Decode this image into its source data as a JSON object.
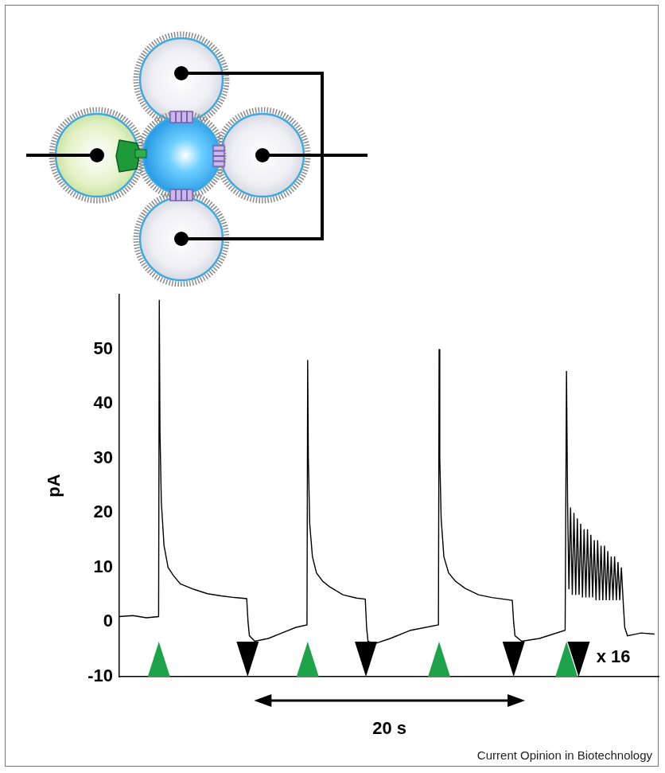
{
  "chart_data": {
    "type": "line",
    "y_label": "pA",
    "x": [
      0,
      1,
      2,
      2.9,
      2.95,
      3.0,
      3.1,
      3.3,
      3.6,
      4.0,
      4.5,
      5.5,
      6.5,
      7.5,
      8.5,
      9.4,
      9.5,
      9.6,
      10.0,
      11,
      12,
      13,
      13.85,
      13.9,
      13.95,
      14.05,
      14.25,
      14.55,
      15,
      15.5,
      16.5,
      17.5,
      18.15,
      18.25,
      18.35,
      18.8,
      20,
      21.5,
      23.55,
      23.6,
      23.65,
      23.75,
      23.95,
      24.3,
      24.8,
      25.5,
      26.5,
      27.5,
      29.0,
      29.1,
      29.2,
      29.7,
      31,
      32.9,
      33.0,
      33.08,
      33.18,
      33.3,
      33.43,
      33.55,
      33.68,
      33.8,
      33.93,
      34.05,
      34.18,
      34.3,
      34.43,
      34.55,
      34.68,
      34.8,
      34.93,
      35.05,
      35.18,
      35.3,
      35.43,
      35.55,
      35.68,
      35.8,
      35.93,
      36.05,
      36.18,
      36.3,
      36.43,
      36.55,
      36.68,
      36.8,
      36.93,
      37.05,
      37.2,
      37.3,
      37.5,
      38.5,
      39.5
    ],
    "values": [
      1,
      1.2,
      0.8,
      1,
      59,
      35,
      22,
      14,
      10,
      8.5,
      7,
      6,
      5.2,
      4.8,
      4.5,
      4.3,
      0,
      -2.5,
      -3.5,
      -3,
      -2,
      -1,
      -0.5,
      48,
      30,
      18,
      12,
      9,
      7.5,
      6.5,
      5,
      4.4,
      4.2,
      -1,
      -3.5,
      -4,
      -3,
      -1.5,
      -0.5,
      50,
      30,
      19,
      12,
      9,
      7.5,
      6.2,
      5,
      4.5,
      4,
      0,
      -2.5,
      -3.5,
      -3,
      -1.5,
      46,
      22,
      6,
      21,
      5,
      20,
      5,
      19,
      5,
      18,
      4.5,
      17,
      4.5,
      17,
      4.5,
      16,
      4.5,
      15,
      4,
      15,
      4,
      14,
      4,
      14,
      4,
      13,
      4,
      12,
      4,
      12,
      4,
      11,
      4,
      10,
      3,
      -1,
      -2.5,
      -2,
      -2.2
    ],
    "color": "#000000",
    "xlim": [
      0,
      39.8
    ],
    "ylim": [
      -10,
      60
    ],
    "yticks": [
      -10,
      0,
      10,
      20,
      30,
      40,
      50
    ],
    "grid": false,
    "tick_labels": "y",
    "events": [
      {
        "x": 2.92,
        "marker": "triangle-up",
        "color": "#1fa34a"
      },
      {
        "x": 9.47,
        "marker": "triangle-down",
        "color": "#000000"
      },
      {
        "x": 13.9,
        "marker": "triangle-up",
        "color": "#1fa34a"
      },
      {
        "x": 18.2,
        "marker": "triangle-down",
        "color": "#000000"
      },
      {
        "x": 23.6,
        "marker": "triangle-up",
        "color": "#1fa34a"
      },
      {
        "x": 29.1,
        "marker": "triangle-down",
        "color": "#000000"
      },
      {
        "x": 33.0,
        "marker": "triangle-up",
        "color": "#1fa34a"
      },
      {
        "x": 33.9,
        "marker": "triangle-down",
        "color": "#000000"
      }
    ],
    "annotations": [
      {
        "text": "x 16",
        "x": 35.2,
        "y": -6.5
      }
    ],
    "scale_bar": {
      "start": 9.94,
      "end": 29.94,
      "label": "20 s"
    },
    "credit": "Current Opinion in Biotechnology"
  }
}
